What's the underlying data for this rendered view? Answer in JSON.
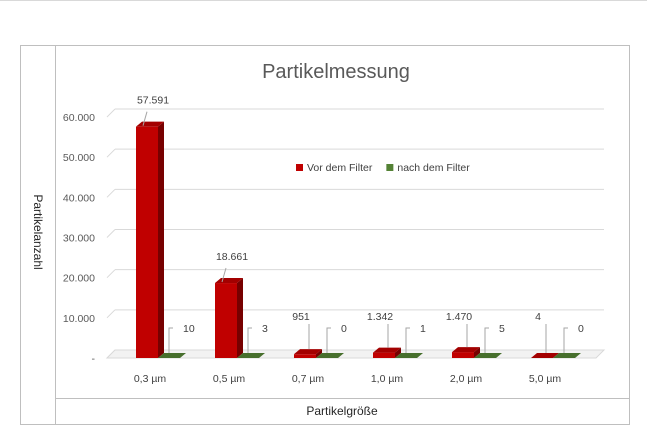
{
  "chart_data": {
    "type": "bar",
    "title": "Partikelmessung",
    "xlabel": "Partikelgröße",
    "ylabel": "Partikelanzahl",
    "categories": [
      "0,3 µm",
      "0,5 µm",
      "0,7 µm",
      "1,0 µm",
      "2,0 µm",
      "5,0 µm"
    ],
    "series": [
      {
        "name": "Vor dem Filter",
        "color": "#c00000",
        "values": [
          57591,
          18661,
          951,
          1342,
          1470,
          4
        ],
        "labels": [
          "57.591",
          "18.661",
          "951",
          "1.342",
          "1.470",
          "4"
        ]
      },
      {
        "name": "nach dem Filter",
        "color": "#548235",
        "values": [
          10,
          3,
          0,
          1,
          5,
          0
        ],
        "labels": [
          "10",
          "3",
          "0",
          "1",
          "5",
          "0"
        ]
      }
    ],
    "ylim": [
      0,
      60000
    ],
    "yticks": [
      0,
      10000,
      20000,
      30000,
      40000,
      50000,
      60000
    ],
    "ytick_labels": [
      "-",
      "10.000",
      "20.000",
      "30.000",
      "40.000",
      "50.000",
      "60.000"
    ],
    "grid": true,
    "legend_position": "center-right"
  }
}
